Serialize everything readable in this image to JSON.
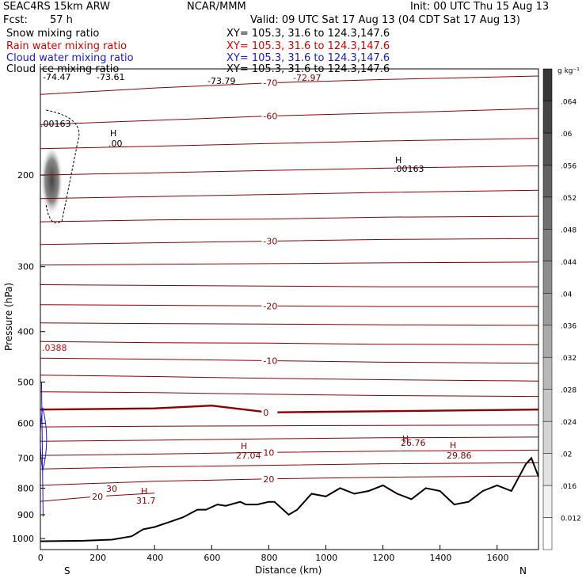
{
  "header": {
    "model": "SEAC4RS 15km ARW",
    "org": "NCAR/MMM",
    "init": "Init: 00 UTC Thu 15 Aug 13",
    "fcst_label": "Fcst:",
    "fcst_value": "57 h",
    "valid": "Valid: 09 UTC Sat 17 Aug 13 (04 CDT Sat 17 Aug 13)"
  },
  "fields": [
    {
      "name": "Snow mixing ratio",
      "xy": "XY= 105.3, 31.6 to 124.3,147.6",
      "color": "#000000"
    },
    {
      "name": "Rain water mixing ratio",
      "xy": "XY= 105.3, 31.6 to 124.3,147.6",
      "color": "#d40000"
    },
    {
      "name": "Cloud water mixing ratio",
      "xy": "XY= 105.3, 31.6 to 124.3,147.6",
      "color": "#1a1acc"
    },
    {
      "name": "Cloud ice mixing ratio",
      "xy": "XY= 105.3, 31.6 to 124.3,147.6",
      "color": "#000000"
    }
  ],
  "chart_data": {
    "type": "line",
    "xlabel": "Distance (km)",
    "ylabel": "Pressure (hPa)",
    "x_ticks": [
      0,
      200,
      400,
      600,
      800,
      1000,
      1200,
      1400,
      1600
    ],
    "y_ticks": [
      200,
      300,
      400,
      500,
      600,
      700,
      800,
      900,
      1000
    ],
    "xlim": [
      0,
      1745
    ],
    "ylim": [
      1050,
      125
    ],
    "y_scale": "log",
    "end_labels": {
      "left": "S",
      "right": "N"
    },
    "colorbar": {
      "unit": "g kg⁻¹",
      "ticks": [
        "0.012",
        ".016",
        ".02",
        ".024",
        ".028",
        ".032",
        ".036",
        ".04",
        ".044",
        ".048",
        ".052",
        ".056",
        ".06",
        ".064"
      ]
    },
    "temperature_contours": [
      {
        "label": "-70",
        "x": [
          0,
          400,
          800,
          1200,
          1745
        ],
        "p": [
          140,
          136,
          133,
          131,
          129
        ]
      },
      {
        "label": "-60",
        "x": [
          0,
          400,
          800,
          1200,
          1745
        ],
        "p": [
          160,
          157,
          154,
          152,
          149
        ]
      },
      {
        "label": "",
        "x": [
          0,
          400,
          800,
          1200,
          1745
        ],
        "p": [
          178,
          176,
          174,
          172,
          170
        ]
      },
      {
        "label": "",
        "x": [
          0,
          400,
          800,
          1200,
          1745
        ],
        "p": [
          200,
          198,
          196,
          194,
          192
        ]
      },
      {
        "label": "",
        "x": [
          0,
          400,
          800,
          1200,
          1745
        ],
        "p": [
          222,
          220,
          218,
          216,
          214
        ]
      },
      {
        "label": "",
        "x": [
          0,
          400,
          800,
          1200,
          1745
        ],
        "p": [
          246,
          244,
          243,
          241,
          240
        ]
      },
      {
        "label": "-30",
        "x": [
          0,
          400,
          800,
          1200,
          1745
        ],
        "p": [
          272,
          270,
          268,
          266,
          265
        ]
      },
      {
        "label": "",
        "x": [
          0,
          400,
          800,
          1200,
          1745
        ],
        "p": [
          298,
          297,
          296,
          295,
          294
        ]
      },
      {
        "label": "",
        "x": [
          0,
          400,
          800,
          1200,
          1745
        ],
        "p": [
          325,
          326,
          327,
          328,
          328
        ]
      },
      {
        "label": "-20",
        "x": [
          0,
          400,
          800,
          1200,
          1745
        ],
        "p": [
          355,
          356,
          357,
          358,
          358
        ]
      },
      {
        "label": "",
        "x": [
          0,
          400,
          800,
          1200,
          1745
        ],
        "p": [
          385,
          386,
          387,
          388,
          389
        ]
      },
      {
        "label": "",
        "x": [
          0,
          400,
          800,
          1200,
          1745
        ],
        "p": [
          418,
          420,
          421,
          423,
          424
        ]
      },
      {
        "label": "-10",
        "x": [
          0,
          400,
          800,
          1200,
          1745
        ],
        "p": [
          450,
          452,
          455,
          458,
          460
        ]
      },
      {
        "label": "",
        "x": [
          0,
          400,
          800,
          1200,
          1745
        ],
        "p": [
          485,
          488,
          492,
          495,
          498
        ]
      },
      {
        "label": "",
        "x": [
          0,
          400,
          800,
          1200,
          1745
        ],
        "p": [
          522,
          524,
          528,
          531,
          533
        ]
      },
      {
        "label": "0",
        "x": [
          0,
          400,
          600,
          800,
          1200,
          1745
        ],
        "p": [
          565,
          562,
          555,
          572,
          569,
          565
        ]
      },
      {
        "label": "",
        "x": [
          0,
          400,
          800,
          1200,
          1745
        ],
        "p": [
          610,
          608,
          607,
          606,
          605
        ]
      },
      {
        "label": "",
        "x": [
          0,
          400,
          800,
          1200,
          1745
        ],
        "p": [
          650,
          647,
          643,
          640,
          638
        ]
      },
      {
        "label": "10",
        "x": [
          0,
          400,
          800,
          1200,
          1745
        ],
        "p": [
          692,
          688,
          683,
          679,
          676
        ]
      },
      {
        "label": "",
        "x": [
          0,
          400,
          800,
          1200,
          1745
        ],
        "p": [
          735,
          728,
          723,
          718,
          715
        ]
      },
      {
        "label": "20",
        "x": [
          0,
          400,
          800,
          1200,
          1745
        ],
        "p": [
          790,
          776,
          768,
          762,
          758
        ]
      },
      {
        "label": "20",
        "x": [
          0,
          200,
          400
        ],
        "p": [
          848,
          830,
          818
        ]
      }
    ],
    "terrain": {
      "x": [
        0,
        150,
        250,
        320,
        360,
        400,
        450,
        500,
        550,
        580,
        620,
        650,
        700,
        720,
        760,
        800,
        820,
        870,
        900,
        950,
        1000,
        1050,
        1100,
        1150,
        1200,
        1250,
        1300,
        1350,
        1400,
        1450,
        1500,
        1550,
        1600,
        1650,
        1700,
        1720,
        1745
      ],
      "p": [
        1012,
        1010,
        1005,
        990,
        960,
        950,
        930,
        910,
        880,
        880,
        860,
        865,
        850,
        860,
        860,
        850,
        850,
        900,
        880,
        820,
        830,
        800,
        820,
        810,
        790,
        820,
        840,
        800,
        810,
        860,
        850,
        810,
        790,
        810,
        720,
        700,
        760
      ]
    },
    "annotations": [
      {
        "text": "-74.47"
      },
      {
        "text": "-73.61"
      },
      {
        "text": "-73.79"
      },
      {
        "text": "-72.97"
      },
      {
        "text": ".00163"
      },
      {
        "text": "H"
      },
      {
        "text": ".00"
      },
      {
        "text": "H"
      },
      {
        "text": ".00163"
      },
      {
        "text": ".0388"
      },
      {
        "text": "H"
      },
      {
        "text": "27.04"
      },
      {
        "text": "H"
      },
      {
        "text": "26.76"
      },
      {
        "text": "H"
      },
      {
        "text": "29.86"
      },
      {
        "text": "30"
      },
      {
        "text": "H"
      },
      {
        "text": "31.7"
      }
    ]
  }
}
